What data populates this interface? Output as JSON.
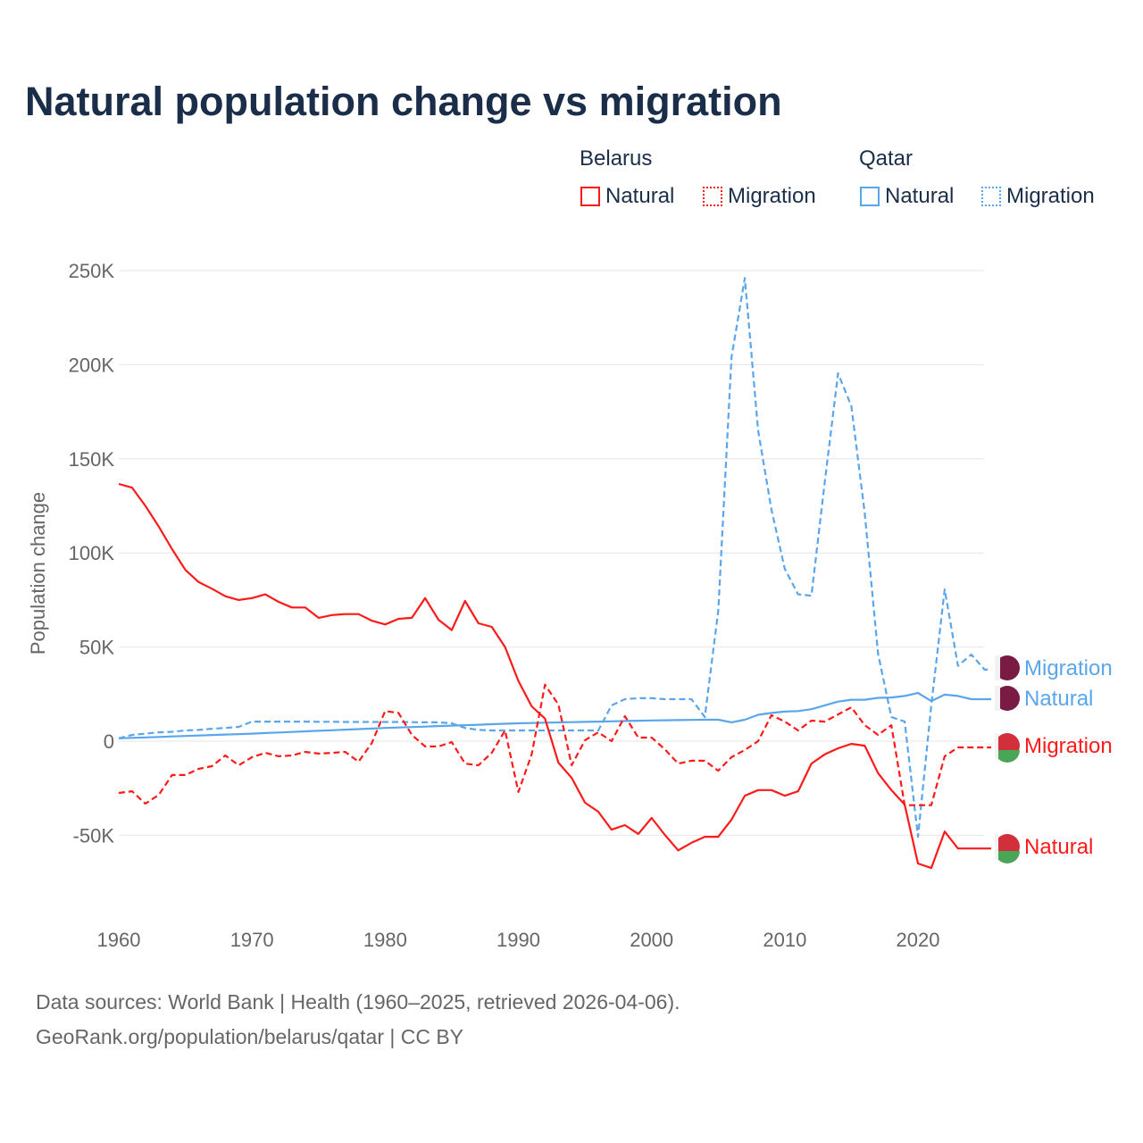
{
  "chart_data": {
    "type": "line",
    "title": "Natural population change vs migration",
    "ylabel": "Population change",
    "xlabel": "",
    "xlim": [
      1960,
      2025
    ],
    "ylim": [
      -75000,
      260000
    ],
    "x_ticks": [
      1960,
      1970,
      1980,
      1990,
      2000,
      2010,
      2020
    ],
    "x_tick_labels": [
      "1960",
      "1970",
      "1980",
      "1990",
      "2000",
      "2010",
      "2020"
    ],
    "y_ticks": [
      -50000,
      0,
      50000,
      100000,
      150000,
      200000,
      250000
    ],
    "y_tick_labels": [
      "-50K",
      "0",
      "50K",
      "100K",
      "150K",
      "200K",
      "250K"
    ],
    "grid": true,
    "legend": {
      "placement": "top-right",
      "groups": [
        {
          "label": "Belarus",
          "items": [
            "Natural",
            "Migration"
          ]
        },
        {
          "label": "Qatar",
          "items": [
            "Natural",
            "Migration"
          ]
        }
      ]
    },
    "colors": {
      "Belarus": "#ff1a1a",
      "Qatar": "#5aa6ec"
    },
    "x": [
      1960,
      1961,
      1962,
      1963,
      1964,
      1965,
      1966,
      1967,
      1968,
      1969,
      1970,
      1971,
      1972,
      1973,
      1974,
      1975,
      1976,
      1977,
      1978,
      1979,
      1980,
      1981,
      1982,
      1983,
      1984,
      1985,
      1986,
      1987,
      1988,
      1989,
      1990,
      1991,
      1992,
      1993,
      1994,
      1995,
      1996,
      1997,
      1998,
      1999,
      2000,
      2001,
      2002,
      2003,
      2004,
      2005,
      2006,
      2007,
      2008,
      2009,
      2010,
      2011,
      2012,
      2013,
      2014,
      2015,
      2016,
      2017,
      2018,
      2019,
      2020,
      2021,
      2022,
      2023,
      2024,
      2025
    ],
    "series": [
      {
        "name": "Belarus Natural",
        "country": "Belarus",
        "kind": "Natural",
        "end_label": "Natural",
        "values": [
          136600,
          134700,
          125000,
          114000,
          102000,
          91000,
          84500,
          81000,
          77000,
          75000,
          76000,
          78000,
          74000,
          71000,
          71000,
          65500,
          67000,
          67500,
          67500,
          64000,
          62000,
          65000,
          65500,
          76000,
          64500,
          59000,
          74500,
          62600,
          60700,
          50000,
          32000,
          18500,
          12000,
          -11400,
          -19500,
          -32700,
          -37500,
          -47000,
          -44600,
          -49300,
          -40800,
          -49800,
          -58000,
          -54000,
          -50800,
          -50800,
          -41700,
          -29000,
          -26000,
          -26000,
          -29000,
          -26600,
          -11900,
          -7000,
          -3800,
          -1400,
          -2400,
          -17000,
          -26000,
          -33700,
          -65000,
          -67400,
          -48000,
          -57000,
          -57000,
          -57000
        ]
      },
      {
        "name": "Belarus Migration",
        "country": "Belarus",
        "kind": "Migration",
        "end_label": "Migration",
        "values": [
          -27500,
          -26600,
          -33200,
          -28500,
          -18000,
          -18000,
          -14700,
          -13300,
          -7600,
          -12800,
          -8500,
          -6200,
          -8000,
          -7600,
          -5700,
          -6600,
          -6200,
          -5700,
          -10900,
          -1000,
          16000,
          15000,
          3300,
          -2800,
          -2800,
          -500,
          -11900,
          -12800,
          -6200,
          5700,
          -27000,
          -7000,
          30000,
          19500,
          -12800,
          500,
          4700,
          0,
          13300,
          1900,
          1900,
          -4300,
          -11900,
          -10400,
          -10400,
          -15700,
          -8500,
          -4700,
          0,
          13800,
          10400,
          5700,
          10900,
          10400,
          14200,
          18000,
          8500,
          3300,
          8500,
          -34000,
          -34000,
          -34000,
          -8000,
          -3300,
          -3300,
          -3300
        ]
      },
      {
        "name": "Qatar Natural",
        "country": "Qatar",
        "kind": "Natural",
        "end_label": "Natural",
        "values": [
          1500,
          1750,
          2000,
          2250,
          2500,
          2750,
          3000,
          3250,
          3500,
          3750,
          4000,
          4300,
          4600,
          4900,
          5200,
          5500,
          5800,
          6100,
          6400,
          6700,
          7000,
          7250,
          7500,
          7750,
          8000,
          8250,
          8500,
          8750,
          9000,
          9250,
          9500,
          9650,
          9800,
          9950,
          10100,
          10250,
          10400,
          10550,
          10700,
          10850,
          11000,
          11100,
          11200,
          11300,
          11400,
          11400,
          10000,
          11400,
          14000,
          15000,
          15700,
          16000,
          17000,
          19000,
          21000,
          22000,
          22000,
          23000,
          23200,
          24000,
          25600,
          21300,
          24700,
          24000,
          22300,
          22300
        ]
      },
      {
        "name": "Qatar Migration",
        "country": "Qatar",
        "kind": "Migration",
        "end_label": "Migration",
        "values": [
          1500,
          3300,
          4000,
          4700,
          5000,
          5700,
          6000,
          6600,
          7000,
          7600,
          10400,
          10400,
          10400,
          10400,
          10400,
          10300,
          10300,
          10200,
          10200,
          10200,
          10200,
          10200,
          10100,
          10000,
          10000,
          9500,
          7000,
          6000,
          5700,
          5700,
          5700,
          5700,
          5700,
          5700,
          5700,
          5700,
          5700,
          19000,
          22300,
          22800,
          22800,
          22300,
          22300,
          22300,
          12800,
          69000,
          204000,
          246000,
          165000,
          123000,
          91500,
          78000,
          77300,
          137600,
          195400,
          178000,
          121000,
          46500,
          12800,
          10400,
          -50800,
          19000,
          80600,
          40000,
          46000,
          38000
        ]
      }
    ]
  },
  "footer": {
    "line1": "Data sources: World Bank | Health (1960–2025, retrieved 2026-04-06).",
    "line2": "GeoRank.org/population/belarus/qatar | CC BY"
  }
}
